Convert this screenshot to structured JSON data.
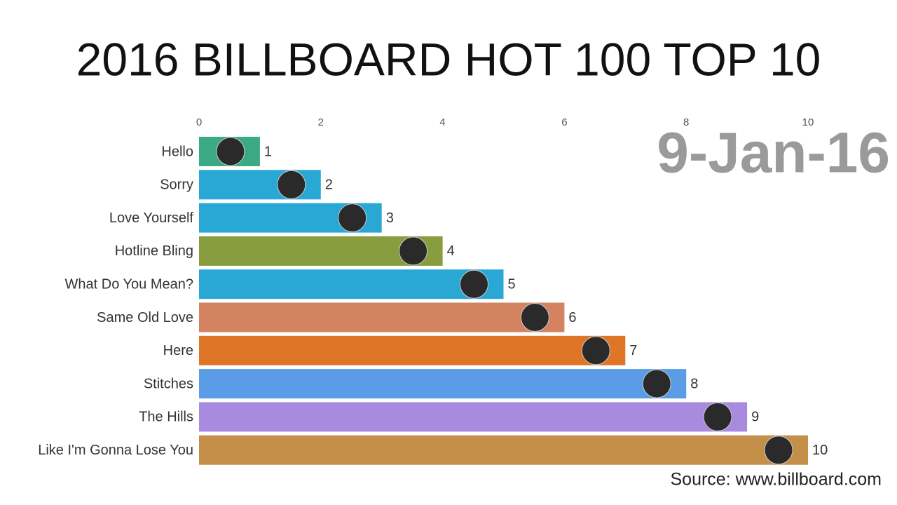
{
  "chart_data": {
    "type": "bar",
    "orientation": "horizontal",
    "title": "2016 BILLBOARD HOT 100 TOP 10",
    "date": "9-Jan-16",
    "source": "Source: www.billboard.com",
    "categories": [
      "Hello",
      "Sorry",
      "Love Yourself",
      "Hotline Bling",
      "What Do You Mean?",
      "Same Old Love",
      "Here",
      "Stitches",
      "The Hills",
      "Like I'm Gonna Lose You"
    ],
    "values": [
      1,
      2,
      3,
      4,
      5,
      6,
      7,
      8,
      9,
      10
    ],
    "colors": [
      "#3aa985",
      "#29a8d6",
      "#29a8d6",
      "#889d3e",
      "#29a8d6",
      "#d3835f",
      "#df7627",
      "#5a9ce6",
      "#a88ade",
      "#c48f48"
    ],
    "xlim": [
      0,
      10
    ],
    "xticks": [
      0,
      2,
      4,
      6,
      8,
      10
    ],
    "grid": false
  }
}
